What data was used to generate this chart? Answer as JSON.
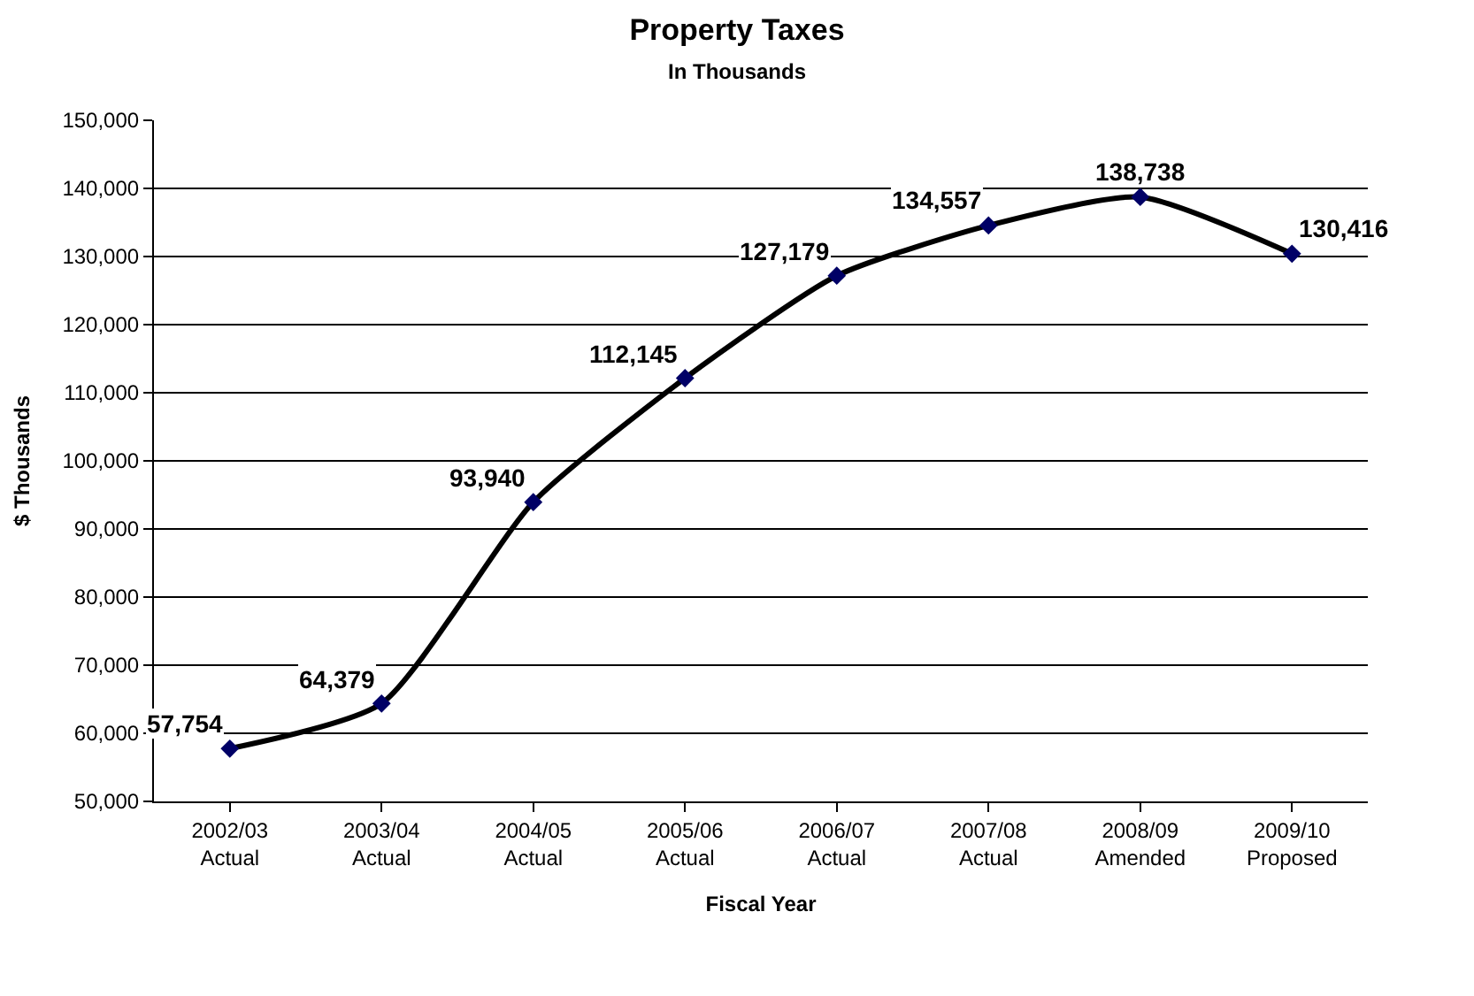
{
  "chart_data": {
    "type": "line",
    "title": "Property Taxes",
    "subtitle": "In Thousands",
    "xlabel": "Fiscal Year",
    "ylabel": "$ Thousands",
    "categories": [
      "2002/03\nActual",
      "2003/04\nActual",
      "2004/05\nActual",
      "2005/06\nActual",
      "2006/07\nActual",
      "2007/08\nActual",
      "2008/09\nAmended",
      "2009/10\nProposed"
    ],
    "series": [
      {
        "color": "#000000",
        "values": [
          57754,
          64379,
          93940,
          112145,
          127179,
          134557,
          138738,
          130416
        ],
        "value_labels": [
          "57,754",
          "64,379",
          "93,940",
          "112,145",
          "127,179",
          "134,557",
          "138,738",
          "130,416"
        ]
      }
    ],
    "ylim": [
      50000,
      150000
    ],
    "yticks": [
      {
        "value": 50000,
        "label": "50,000"
      },
      {
        "value": 60000,
        "label": "60,000"
      },
      {
        "value": 70000,
        "label": "70,000"
      },
      {
        "value": 80000,
        "label": "80,000"
      },
      {
        "value": 90000,
        "label": "90,000"
      },
      {
        "value": 100000,
        "label": "100,000"
      },
      {
        "value": 110000,
        "label": "110,000"
      },
      {
        "value": 120000,
        "label": "120,000"
      },
      {
        "value": 130000,
        "label": "130,000"
      },
      {
        "value": 140000,
        "label": "140,000"
      },
      {
        "value": 150000,
        "label": "150,000"
      }
    ],
    "grid": "y",
    "marker": "diamond",
    "line_style": "solid"
  }
}
